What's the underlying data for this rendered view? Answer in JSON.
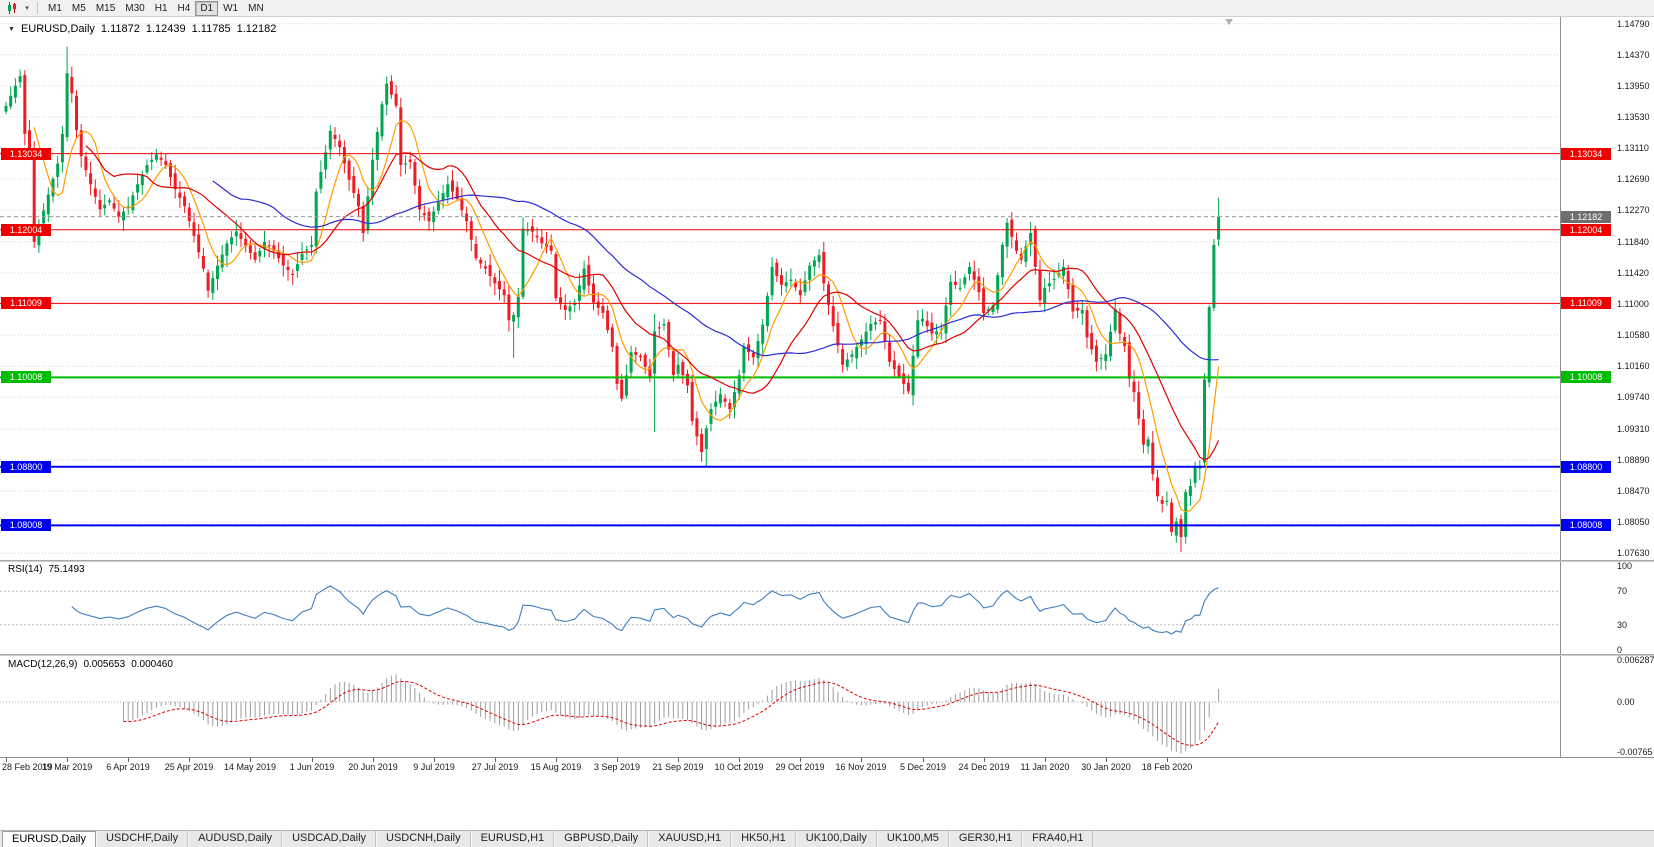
{
  "toolbar": {
    "timeframes": [
      "M1",
      "M5",
      "M15",
      "M30",
      "H1",
      "H4",
      "D1",
      "W1",
      "MN"
    ],
    "active_timeframe": "D1"
  },
  "header": {
    "symbol": "EURUSD,Daily",
    "open": "1.11872",
    "high": "1.12439",
    "low": "1.11785",
    "close": "1.12182"
  },
  "price_axis": {
    "labels": [
      "1.14790",
      "1.14370",
      "1.13950",
      "1.13530",
      "1.13110",
      "1.12690",
      "1.12270",
      "1.11840",
      "1.11420",
      "1.11000",
      "1.10580",
      "1.10160",
      "1.09740",
      "1.09310",
      "1.08890",
      "1.08470",
      "1.08050",
      "1.07630"
    ]
  },
  "levels": [
    {
      "label": "1.13034",
      "value": 1.13034,
      "color": "#f00000",
      "width": 1
    },
    {
      "label": "1.12004",
      "value": 1.12004,
      "color": "#f00000",
      "width": 1
    },
    {
      "label": "1.11009",
      "value": 1.11009,
      "color": "#f00000",
      "width": 1
    },
    {
      "label": "1.10008",
      "value": 1.10008,
      "color": "#00bc00",
      "width": 2
    },
    {
      "label": "1.08800",
      "value": 1.088,
      "color": "#0000f0",
      "width": 2
    },
    {
      "label": "1.08008",
      "value": 1.08008,
      "color": "#0000f0",
      "width": 2
    }
  ],
  "current_price": {
    "label": "1.12182",
    "value": 1.12182,
    "color": "#6e6e6e"
  },
  "rsi": {
    "name": "RSI(14)",
    "value": "75.1493",
    "axis_labels": [
      "100",
      "70",
      "30",
      "0"
    ],
    "level_lines": [
      70,
      30
    ],
    "line_color": "#3e7fc1"
  },
  "macd": {
    "name": "MACD(12,26,9)",
    "main_value": "0.005653",
    "signal_value": "0.000460",
    "axis_labels": [
      "0.006287",
      "0.00",
      "-0.00765"
    ],
    "histogram_color": "#9d9d9d",
    "signal_color": "#e00000"
  },
  "tabs": {
    "active": "EURUSD,Daily",
    "items": [
      "EURUSD,Daily",
      "USDCHF,Daily",
      "AUDUSD,Daily",
      "USDCAD,Daily",
      "USDCNH,Daily",
      "EURUSD,H1",
      "GBPUSD,Daily",
      "XAUUSD,H1",
      "HK50,H1",
      "UK100,Daily",
      "UK100,M5",
      "GER30,H1",
      "FRA40,H1"
    ],
    "note": ""
  },
  "chart_data": {
    "type": "candlestick",
    "symbol": "EURUSD",
    "timeframe": "Daily",
    "n_candles": 259,
    "visible_range": {
      "price_min": 1.0754,
      "price_max": 1.1488
    },
    "up_color": "#00a651",
    "down_color": "#ee1c25",
    "date_labels": [
      "28 Feb 2019",
      "19 Mar 2019",
      "6 Apr 2019",
      "25 Apr 2019",
      "14 May 2019",
      "1 Jun 2019",
      "20 Jun 2019",
      "9 Jul 2019",
      "27 Jul 2019",
      "15 Aug 2019",
      "3 Sep 2019",
      "21 Sep 2019",
      "10 Oct 2019",
      "29 Oct 2019",
      "16 Nov 2019",
      "5 Dec 2019",
      "24 Dec 2019",
      "11 Jan 2020",
      "30 Jan 2020",
      "18 Feb 2020"
    ],
    "label_every": 13,
    "close_anchors": [
      [
        0,
        1.1368
      ],
      [
        2,
        1.1395
      ],
      [
        3,
        1.1408
      ],
      [
        4,
        1.133
      ],
      [
        5,
        1.1305
      ],
      [
        6,
        1.1184
      ],
      [
        7,
        1.1205
      ],
      [
        9,
        1.1248
      ],
      [
        11,
        1.129
      ],
      [
        12,
        1.133
      ],
      [
        13,
        1.1412
      ],
      [
        14,
        1.1385
      ],
      [
        15,
        1.1335
      ],
      [
        16,
        1.13
      ],
      [
        18,
        1.1262
      ],
      [
        20,
        1.1228
      ],
      [
        22,
        1.124
      ],
      [
        24,
        1.1218
      ],
      [
        26,
        1.1232
      ],
      [
        28,
        1.1262
      ],
      [
        30,
        1.1288
      ],
      [
        32,
        1.1302
      ],
      [
        34,
        1.1288
      ],
      [
        36,
        1.1255
      ],
      [
        38,
        1.1232
      ],
      [
        40,
        1.1192
      ],
      [
        42,
        1.1148
      ],
      [
        43,
        1.1118
      ],
      [
        45,
        1.1152
      ],
      [
        47,
        1.1182
      ],
      [
        49,
        1.1198
      ],
      [
        51,
        1.1178
      ],
      [
        53,
        1.116
      ],
      [
        55,
        1.1184
      ],
      [
        57,
        1.1172
      ],
      [
        59,
        1.1152
      ],
      [
        61,
        1.114
      ],
      [
        63,
        1.1168
      ],
      [
        65,
        1.118
      ],
      [
        66,
        1.1252
      ],
      [
        68,
        1.1305
      ],
      [
        69,
        1.1334
      ],
      [
        71,
        1.1312
      ],
      [
        73,
        1.1268
      ],
      [
        75,
        1.1232
      ],
      [
        76,
        1.1196
      ],
      [
        78,
        1.1295
      ],
      [
        80,
        1.137
      ],
      [
        81,
        1.1398
      ],
      [
        83,
        1.1368
      ],
      [
        84,
        1.1288
      ],
      [
        86,
        1.1292
      ],
      [
        88,
        1.1228
      ],
      [
        90,
        1.1212
      ],
      [
        92,
        1.1238
      ],
      [
        94,
        1.1262
      ],
      [
        96,
        1.1242
      ],
      [
        98,
        1.1212
      ],
      [
        100,
        1.1162
      ],
      [
        102,
        1.1148
      ],
      [
        104,
        1.1128
      ],
      [
        106,
        1.1112
      ],
      [
        107,
        1.1078
      ],
      [
        108,
        1.1085
      ],
      [
        109,
        1.111
      ],
      [
        110,
        1.1202
      ],
      [
        112,
        1.1198
      ],
      [
        114,
        1.1182
      ],
      [
        116,
        1.1172
      ],
      [
        117,
        1.1108
      ],
      [
        119,
        1.1092
      ],
      [
        121,
        1.1102
      ],
      [
        123,
        1.1148
      ],
      [
        125,
        1.1102
      ],
      [
        127,
        1.1088
      ],
      [
        129,
        1.1042
      ],
      [
        130,
        1.0992
      ],
      [
        131,
        1.0972
      ],
      [
        133,
        1.1035
      ],
      [
        135,
        1.1028
      ],
      [
        137,
        1.1002
      ],
      [
        138,
        1.1063
      ],
      [
        140,
        1.1073
      ],
      [
        142,
        1.1004
      ],
      [
        143,
        1.1018
      ],
      [
        145,
        1.099
      ],
      [
        146,
        1.0942
      ],
      [
        148,
        1.09
      ],
      [
        149,
        1.0932
      ],
      [
        150,
        1.0958
      ],
      [
        152,
        1.0978
      ],
      [
        154,
        1.0958
      ],
      [
        156,
        1.1004
      ],
      [
        157,
        1.1042
      ],
      [
        159,
        1.1028
      ],
      [
        161,
        1.1072
      ],
      [
        163,
        1.115
      ],
      [
        165,
        1.1126
      ],
      [
        167,
        1.1133
      ],
      [
        169,
        1.1112
      ],
      [
        171,
        1.1152
      ],
      [
        173,
        1.1166
      ],
      [
        174,
        1.1128
      ],
      [
        176,
        1.107
      ],
      [
        178,
        1.1018
      ],
      [
        180,
        1.1032
      ],
      [
        182,
        1.1052
      ],
      [
        184,
        1.1073
      ],
      [
        186,
        1.1078
      ],
      [
        188,
        1.1022
      ],
      [
        190,
        1.1002
      ],
      [
        192,
        1.0982
      ],
      [
        194,
        1.1078
      ],
      [
        195,
        1.108
      ],
      [
        197,
        1.106
      ],
      [
        199,
        1.1066
      ],
      [
        201,
        1.113
      ],
      [
        203,
        1.1122
      ],
      [
        205,
        1.115
      ],
      [
        207,
        1.1116
      ],
      [
        208,
        1.1088
      ],
      [
        210,
        1.1098
      ],
      [
        212,
        1.118
      ],
      [
        213,
        1.121
      ],
      [
        215,
        1.1172
      ],
      [
        216,
        1.116
      ],
      [
        218,
        1.1196
      ],
      [
        220,
        1.1105
      ],
      [
        221,
        1.1122
      ],
      [
        223,
        1.1134
      ],
      [
        225,
        1.115
      ],
      [
        227,
        1.109
      ],
      [
        229,
        1.1092
      ],
      [
        230,
        1.1055
      ],
      [
        232,
        1.1022
      ],
      [
        234,
        1.1032
      ],
      [
        236,
        1.1093
      ],
      [
        237,
        1.106
      ],
      [
        238,
        1.1043
      ],
      [
        239,
        1.0999
      ],
      [
        240,
        1.0981
      ],
      [
        241,
        1.0945
      ],
      [
        242,
        1.091
      ],
      [
        243,
        1.0917
      ],
      [
        244,
        1.087
      ],
      [
        245,
        1.084
      ],
      [
        246,
        1.083
      ],
      [
        247,
        1.0834
      ],
      [
        248,
        1.0792
      ],
      [
        249,
        1.0806
      ],
      [
        250,
        1.0785
      ],
      [
        251,
        1.0846
      ],
      [
        252,
        1.0854
      ],
      [
        253,
        1.0881
      ],
      [
        254,
        1.088
      ],
      [
        255,
        1.0998
      ],
      [
        256,
        1.1096
      ],
      [
        257,
        1.118
      ],
      [
        258,
        1.12182
      ]
    ],
    "overrides": {
      "6": {
        "low": 1.1176
      },
      "13": {
        "high": 1.1448
      },
      "108": {
        "low": 1.1027
      },
      "138": {
        "low": 1.0927,
        "high": 1.1087
      },
      "149": {
        "low": 1.0879
      },
      "250": {
        "low": 1.0765
      },
      "258": {
        "open": 1.11872,
        "high": 1.12439,
        "low": 1.11785,
        "close": 1.12182
      }
    },
    "moving_averages": [
      {
        "period": 7,
        "color": "#ff9c00"
      },
      {
        "period": 18,
        "color": "#e00000"
      },
      {
        "period": 45,
        "color": "#2c2cd4"
      }
    ],
    "horizontal_levels": [
      1.13034,
      1.12004,
      1.11009,
      1.10008,
      1.088,
      1.08008
    ],
    "indicators": {
      "rsi": {
        "period": 14,
        "last_value": 75.1493
      },
      "macd": {
        "fast": 12,
        "slow": 26,
        "signal": 9,
        "last_main": 0.005653,
        "last_signal": 0.00046
      }
    }
  }
}
